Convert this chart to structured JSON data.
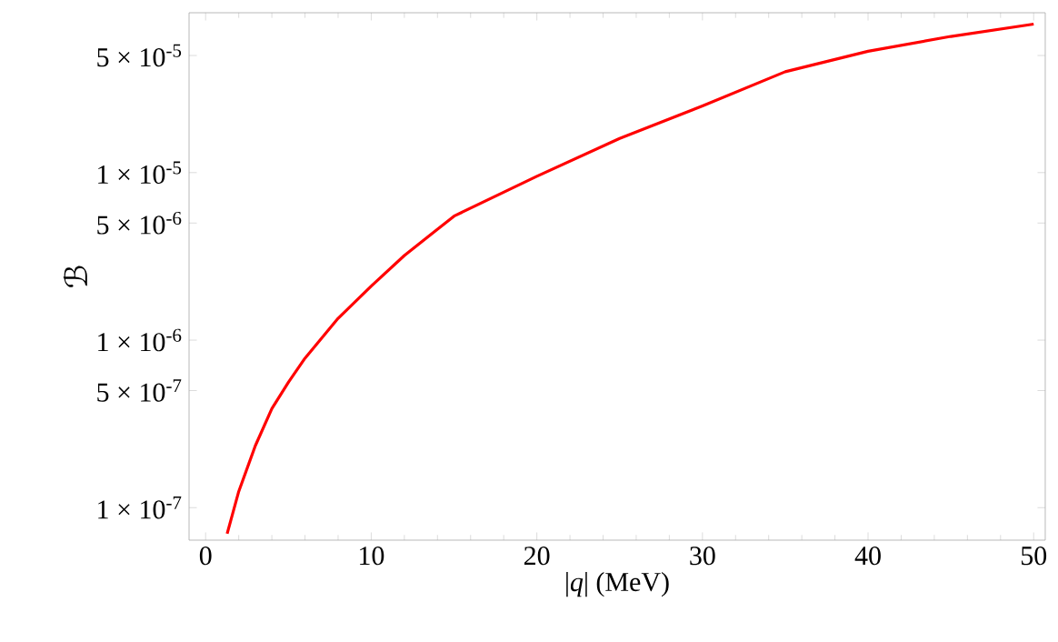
{
  "chart_data": {
    "type": "line",
    "xlabel": "|*q*|  (MeV)",
    "ylabel": "ℬ",
    "log": "y",
    "xlim": [
      -1.0,
      50.7
    ],
    "ylim": [
      6.4e-08,
      9e-05
    ],
    "xticks": [
      0,
      10,
      20,
      30,
      40,
      50
    ],
    "yticks": [
      {
        "value": 1e-07,
        "label": "1 × 10$^{-7}$"
      },
      {
        "value": 5e-07,
        "label": "5 × 10$^{-7}$"
      },
      {
        "value": 1e-06,
        "label": "1 × 10$^{-6}$"
      },
      {
        "value": 5e-06,
        "label": "5 × 10$^{-6}$"
      },
      {
        "value": 1e-05,
        "label": "1 × 10$^{-5}$"
      },
      {
        "value": 5e-05,
        "label": "5 × 10$^{-5}$"
      }
    ],
    "grid": false,
    "marker": "none",
    "line_style": "solid",
    "series": [
      {
        "color": "#ff0000",
        "x": [
          1.3,
          2,
          3,
          4,
          5,
          6,
          8,
          10,
          12,
          15,
          20,
          25,
          30,
          35,
          40,
          45,
          50
        ],
        "values": [
          7e-08,
          1.25e-07,
          2.34e-07,
          3.9e-07,
          5.6e-07,
          7.8e-07,
          1.35e-06,
          2.1e-06,
          3.2e-06,
          5.5e-06,
          9.5e-06,
          1.6e-05,
          2.5e-05,
          4e-05,
          5.3e-05,
          6.5e-05,
          7.7e-05
        ]
      }
    ]
  }
}
